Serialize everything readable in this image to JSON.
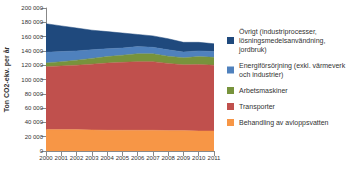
{
  "chart_data": {
    "type": "area",
    "stacked": true,
    "grid": false,
    "legend": "right",
    "y_label": "Ton CO2-ekv. per år",
    "categories": [
      "2000",
      "2001",
      "2002",
      "2003",
      "2004",
      "2005",
      "2006",
      "2007",
      "2008",
      "2009",
      "2010",
      "2011"
    ],
    "ylim": [
      0,
      200000
    ],
    "yticks": [
      0,
      {
        "value": 20000,
        "label": "20 000"
      },
      {
        "value": 40000,
        "label": "40 000"
      },
      {
        "value": 60000,
        "label": "60 000"
      },
      {
        "value": 80000,
        "label": "80 000"
      },
      {
        "value": 100000,
        "label": "100 000"
      },
      {
        "value": 120000,
        "label": "120 000"
      },
      {
        "value": 140000,
        "label": "140 000"
      },
      {
        "value": 160000,
        "label": "160 000"
      },
      {
        "value": 180000,
        "label": "180 000"
      },
      {
        "value": 200000,
        "label": "200 000"
      }
    ],
    "series": [
      {
        "name": "Behandling av avloppsvatten",
        "color": "#f79646",
        "values": [
          30000,
          30000,
          30000,
          29500,
          29000,
          29000,
          29000,
          29000,
          28500,
          28500,
          28000,
          28000
        ]
      },
      {
        "name": "Transporter",
        "color": "#c0504d",
        "values": [
          88000,
          89000,
          90000,
          92000,
          94000,
          95000,
          96000,
          96000,
          94000,
          92000,
          93000,
          92000
        ]
      },
      {
        "name": "Arbetsmaskiner",
        "color": "#77933c",
        "values": [
          5000,
          6000,
          7000,
          8000,
          9000,
          10000,
          11000,
          11000,
          10000,
          10000,
          11000,
          11000
        ]
      },
      {
        "name": "Energiförsörjning (exkl. värmeverk och industrier)",
        "color": "#4f81bd",
        "values": [
          15000,
          14000,
          13000,
          12000,
          11000,
          10000,
          10000,
          9000,
          9000,
          8000,
          8000,
          8000
        ]
      },
      {
        "name": "Övrigt (industriprocesser, lösningsmedelsanvändning, jordbruk)",
        "color": "#1f497d",
        "values": [
          40000,
          36000,
          32000,
          27500,
          24000,
          21000,
          17000,
          16000,
          15500,
          13500,
          12000,
          11000
        ]
      }
    ]
  }
}
